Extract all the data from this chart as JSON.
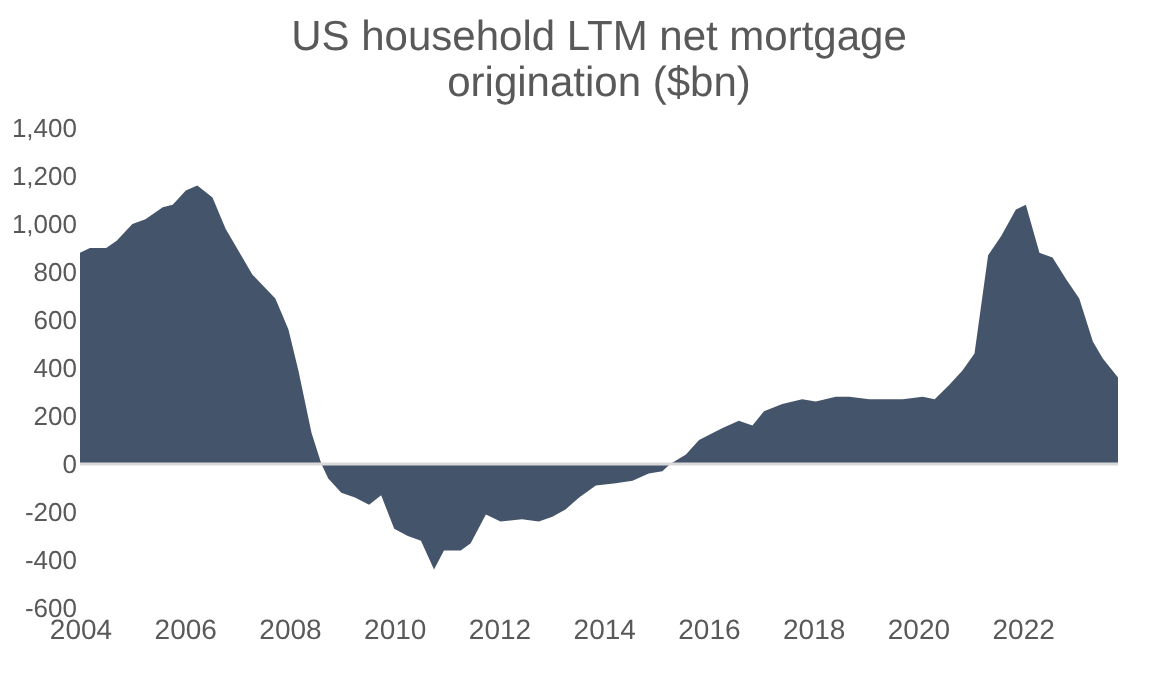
{
  "chart_data": {
    "type": "area",
    "title": "US household LTM net mortgage origination ($bn)",
    "x": [
      2004.0,
      2004.19,
      2004.5,
      2004.7,
      2005.0,
      2005.25,
      2005.58,
      2005.77,
      2006.02,
      2006.24,
      2006.53,
      2006.78,
      2007.29,
      2007.73,
      2007.98,
      2008.17,
      2008.42,
      2008.61,
      2008.74,
      2008.99,
      2009.25,
      2009.52,
      2009.75,
      2010.0,
      2010.26,
      2010.51,
      2010.76,
      2010.95,
      2011.27,
      2011.46,
      2011.75,
      2012.03,
      2012.44,
      2012.76,
      2013.02,
      2013.27,
      2013.53,
      2013.85,
      2014.23,
      2014.55,
      2014.86,
      2015.12,
      2015.27,
      2015.57,
      2015.82,
      2016.27,
      2016.58,
      2016.84,
      2017.06,
      2017.41,
      2017.79,
      2018.05,
      2018.43,
      2018.69,
      2019.07,
      2019.71,
      2020.09,
      2020.32,
      2020.6,
      2020.85,
      2021.08,
      2021.34,
      2021.59,
      2021.87,
      2022.06,
      2022.32,
      2022.57,
      2022.83,
      2023.08,
      2023.34,
      2023.53,
      2023.82
    ],
    "series": [
      {
        "color": "#44546a",
        "values": [
          880,
          900,
          900,
          930,
          1000,
          1020,
          1070,
          1080,
          1140,
          1160,
          1110,
          980,
          790,
          690,
          560,
          390,
          130,
          0,
          -60,
          -120,
          -140,
          -170,
          -130,
          -270,
          -300,
          -320,
          -440,
          -360,
          -360,
          -330,
          -210,
          -240,
          -230,
          -240,
          -220,
          -190,
          -140,
          -90,
          -80,
          -70,
          -40,
          -30,
          0,
          40,
          100,
          150,
          180,
          160,
          220,
          250,
          270,
          260,
          280,
          280,
          270,
          270,
          280,
          270,
          330,
          390,
          460,
          870,
          950,
          1060,
          1080,
          880,
          860,
          770,
          690,
          510,
          440,
          360
        ]
      }
    ],
    "xlim": [
      2004,
      2023.82
    ],
    "xticks": [
      2004,
      2006,
      2008,
      2010,
      2012,
      2014,
      2016,
      2018,
      2020,
      2022
    ],
    "ylim": [
      -600,
      1400
    ],
    "yticks": [
      -600,
      -400,
      -200,
      0,
      200,
      400,
      600,
      800,
      {
        "value": 1000,
        "label": "1,000"
      },
      {
        "value": 1200,
        "label": "1,200"
      },
      {
        "value": 1400,
        "label": "1,400"
      }
    ],
    "ref_lines": [
      {
        "axis": "y",
        "value": 0,
        "color": "#d9d9d9"
      }
    ],
    "grid": false
  }
}
